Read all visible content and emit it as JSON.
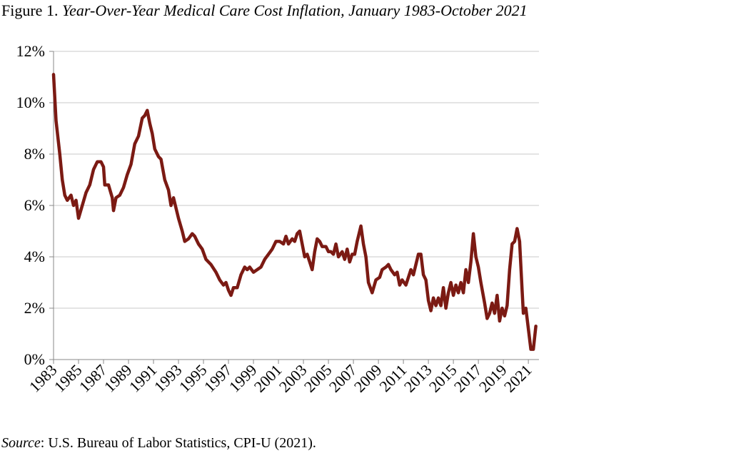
{
  "chart_data": {
    "type": "line",
    "title_prefix": "Figure 1.",
    "title": "Year-Over-Year Medical Care Cost Inflation, January 1983-October 2021",
    "source_label": "Source",
    "source_text": ": U.S. Bureau of Labor Statistics, CPI-U (2021).",
    "xlim": [
      1983,
      2021.85
    ],
    "xticks": [
      1983,
      1985,
      1987,
      1989,
      1991,
      1993,
      1995,
      1997,
      1999,
      2001,
      2003,
      2005,
      2007,
      2009,
      2011,
      2013,
      2015,
      2017,
      2019,
      2021
    ],
    "ylim": [
      0,
      12
    ],
    "yticks": [
      {
        "value": 0,
        "label": "0%"
      },
      {
        "value": 2,
        "label": "2%"
      },
      {
        "value": 4,
        "label": "4%"
      },
      {
        "value": 6,
        "label": "6%"
      },
      {
        "value": 8,
        "label": "8%"
      },
      {
        "value": 10,
        "label": "10%"
      },
      {
        "value": 12,
        "label": "12%"
      }
    ],
    "grid": true,
    "series": [
      {
        "color": "#7b1a13",
        "x": [
          1983.0,
          1983.2,
          1983.5,
          1983.7,
          1983.9,
          1984.1,
          1984.4,
          1984.6,
          1984.8,
          1985.0,
          1985.3,
          1985.6,
          1985.9,
          1986.2,
          1986.5,
          1986.8,
          1987.0,
          1987.1,
          1987.4,
          1987.7,
          1987.8,
          1988.0,
          1988.3,
          1988.6,
          1988.9,
          1989.2,
          1989.5,
          1989.8,
          1990.1,
          1990.3,
          1990.5,
          1990.7,
          1990.9,
          1991.1,
          1991.4,
          1991.6,
          1991.9,
          1992.2,
          1992.4,
          1992.6,
          1992.8,
          1993.0,
          1993.3,
          1993.5,
          1993.8,
          1994.1,
          1994.3,
          1994.6,
          1994.9,
          1995.2,
          1995.6,
          1996.0,
          1996.3,
          1996.6,
          1996.8,
          1997.0,
          1997.2,
          1997.4,
          1997.7,
          1998.0,
          1998.3,
          1998.5,
          1998.7,
          1999.0,
          1999.3,
          1999.6,
          1999.9,
          2000.2,
          2000.5,
          2000.8,
          2001.1,
          2001.4,
          2001.6,
          2001.8,
          2002.1,
          2002.3,
          2002.5,
          2002.7,
          2002.9,
          2003.1,
          2003.3,
          2003.5,
          2003.7,
          2003.9,
          2004.1,
          2004.3,
          2004.5,
          2004.8,
          2005.0,
          2005.2,
          2005.4,
          2005.6,
          2005.8,
          2006.1,
          2006.3,
          2006.5,
          2006.7,
          2006.9,
          2007.1,
          2007.3,
          2007.6,
          2007.8,
          2008.0,
          2008.2,
          2008.5,
          2008.8,
          2009.1,
          2009.3,
          2009.6,
          2009.8,
          2010.0,
          2010.3,
          2010.5,
          2010.7,
          2010.9,
          2011.2,
          2011.4,
          2011.6,
          2011.8,
          2012.0,
          2012.2,
          2012.4,
          2012.6,
          2012.8,
          2013.0,
          2013.2,
          2013.4,
          2013.6,
          2013.8,
          2014.0,
          2014.2,
          2014.4,
          2014.6,
          2014.8,
          2015.0,
          2015.2,
          2015.4,
          2015.6,
          2015.8,
          2016.0,
          2016.2,
          2016.4,
          2016.6,
          2016.8,
          2017.0,
          2017.2,
          2017.5,
          2017.7,
          2017.9,
          2018.1,
          2018.3,
          2018.5,
          2018.7,
          2018.9,
          2019.1,
          2019.3,
          2019.5,
          2019.7,
          2019.9,
          2020.1,
          2020.3,
          2020.5,
          2020.6,
          2020.8,
          2021.0,
          2021.2,
          2021.4,
          2021.6
        ],
        "values": [
          11.1,
          9.3,
          8.0,
          7.0,
          6.4,
          6.2,
          6.4,
          6.0,
          6.2,
          5.5,
          6.0,
          6.5,
          6.8,
          7.4,
          7.7,
          7.7,
          7.5,
          6.8,
          6.8,
          6.3,
          5.8,
          6.3,
          6.4,
          6.7,
          7.2,
          7.6,
          8.4,
          8.7,
          9.4,
          9.5,
          9.7,
          9.2,
          8.8,
          8.2,
          7.9,
          7.8,
          7.0,
          6.6,
          6.0,
          6.3,
          5.9,
          5.5,
          5.0,
          4.6,
          4.7,
          4.9,
          4.8,
          4.5,
          4.3,
          3.9,
          3.7,
          3.4,
          3.1,
          2.9,
          3.0,
          2.7,
          2.5,
          2.8,
          2.8,
          3.3,
          3.6,
          3.5,
          3.6,
          3.4,
          3.5,
          3.6,
          3.9,
          4.1,
          4.3,
          4.6,
          4.6,
          4.5,
          4.8,
          4.5,
          4.7,
          4.6,
          4.9,
          5.0,
          4.5,
          4.0,
          4.1,
          3.8,
          3.5,
          4.2,
          4.7,
          4.6,
          4.4,
          4.4,
          4.2,
          4.2,
          4.1,
          4.5,
          4.0,
          4.2,
          3.9,
          4.3,
          3.8,
          4.1,
          4.1,
          4.6,
          5.2,
          4.5,
          4.0,
          3.0,
          2.6,
          3.1,
          3.2,
          3.5,
          3.6,
          3.7,
          3.5,
          3.3,
          3.4,
          2.9,
          3.1,
          2.9,
          3.2,
          3.5,
          3.3,
          3.7,
          4.1,
          4.1,
          3.3,
          3.1,
          2.3,
          1.9,
          2.4,
          2.1,
          2.4,
          2.1,
          2.8,
          2.0,
          2.6,
          3.0,
          2.5,
          2.9,
          2.6,
          3.0,
          2.6,
          3.5,
          3.0,
          3.8,
          4.9,
          4.0,
          3.6,
          3.0,
          2.2,
          1.6,
          1.8,
          2.2,
          1.8,
          2.5,
          1.5,
          2.0,
          1.7,
          2.1,
          3.5,
          4.5,
          4.6,
          5.1,
          4.6,
          2.7,
          1.8,
          2.0,
          1.2,
          0.4,
          0.4,
          1.3
        ]
      }
    ]
  }
}
